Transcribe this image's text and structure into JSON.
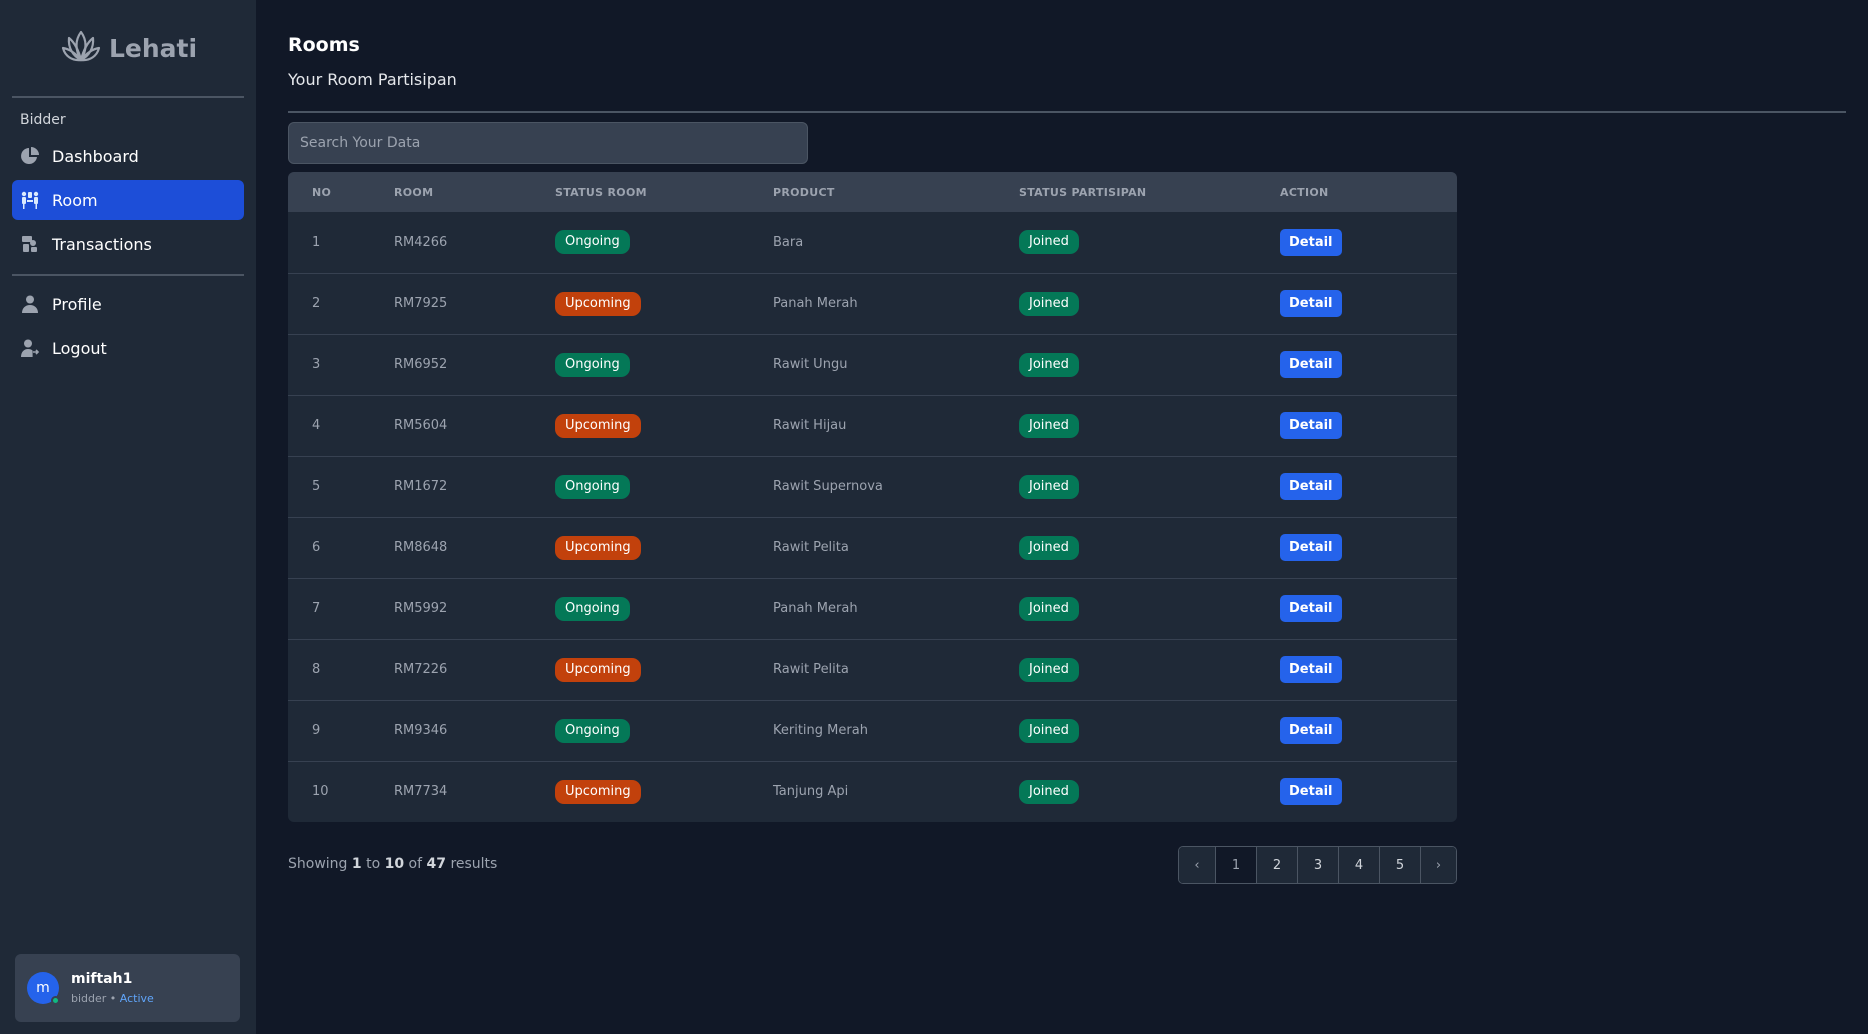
{
  "brand": {
    "name": "Lehati"
  },
  "sidebar": {
    "section_label": "Bidder",
    "items": [
      {
        "label": "Dashboard",
        "icon": "pie-chart-icon"
      },
      {
        "label": "Room",
        "icon": "room-users-icon",
        "active": true
      },
      {
        "label": "Transactions",
        "icon": "transactions-icon"
      }
    ],
    "account_items": [
      {
        "label": "Profile",
        "icon": "user-icon"
      },
      {
        "label": "Logout",
        "icon": "logout-icon"
      }
    ]
  },
  "user": {
    "initial": "m",
    "name": "miftah1",
    "role": "bidder",
    "separator": "•",
    "status": "Active"
  },
  "header": {
    "title": "Rooms",
    "subtitle": "Your Room Partisipan"
  },
  "search": {
    "placeholder": "Search Your Data",
    "value": ""
  },
  "table": {
    "columns": [
      "NO",
      "ROOM",
      "STATUS ROOM",
      "PRODUCT",
      "STATUS PARTISIPAN",
      "ACTION"
    ],
    "rows": [
      {
        "no": "1",
        "room": "RM4266",
        "status": "Ongoing",
        "product": "Bara",
        "participation": "Joined",
        "action": "Detail"
      },
      {
        "no": "2",
        "room": "RM7925",
        "status": "Upcoming",
        "product": "Panah Merah",
        "participation": "Joined",
        "action": "Detail"
      },
      {
        "no": "3",
        "room": "RM6952",
        "status": "Ongoing",
        "product": "Rawit Ungu",
        "participation": "Joined",
        "action": "Detail"
      },
      {
        "no": "4",
        "room": "RM5604",
        "status": "Upcoming",
        "product": "Rawit Hijau",
        "participation": "Joined",
        "action": "Detail"
      },
      {
        "no": "5",
        "room": "RM1672",
        "status": "Ongoing",
        "product": "Rawit Supernova",
        "participation": "Joined",
        "action": "Detail"
      },
      {
        "no": "6",
        "room": "RM8648",
        "status": "Upcoming",
        "product": "Rawit Pelita",
        "participation": "Joined",
        "action": "Detail"
      },
      {
        "no": "7",
        "room": "RM5992",
        "status": "Ongoing",
        "product": "Panah Merah",
        "participation": "Joined",
        "action": "Detail"
      },
      {
        "no": "8",
        "room": "RM7226",
        "status": "Upcoming",
        "product": "Rawit Pelita",
        "participation": "Joined",
        "action": "Detail"
      },
      {
        "no": "9",
        "room": "RM9346",
        "status": "Ongoing",
        "product": "Keriting Merah",
        "participation": "Joined",
        "action": "Detail"
      },
      {
        "no": "10",
        "room": "RM7734",
        "status": "Upcoming",
        "product": "Tanjung Api",
        "participation": "Joined",
        "action": "Detail"
      }
    ]
  },
  "results": {
    "prefix": "Showing",
    "from": "1",
    "to_word": "to",
    "to": "10",
    "of_word": "of",
    "total": "47",
    "suffix": "results"
  },
  "pagination": {
    "prev": "‹",
    "pages": [
      "1",
      "2",
      "3",
      "4",
      "5"
    ],
    "current": "1",
    "next": "›"
  },
  "colors": {
    "accent": "#2563eb",
    "ongoing": "#047857",
    "upcoming": "#c2410c",
    "joined": "#047857"
  }
}
